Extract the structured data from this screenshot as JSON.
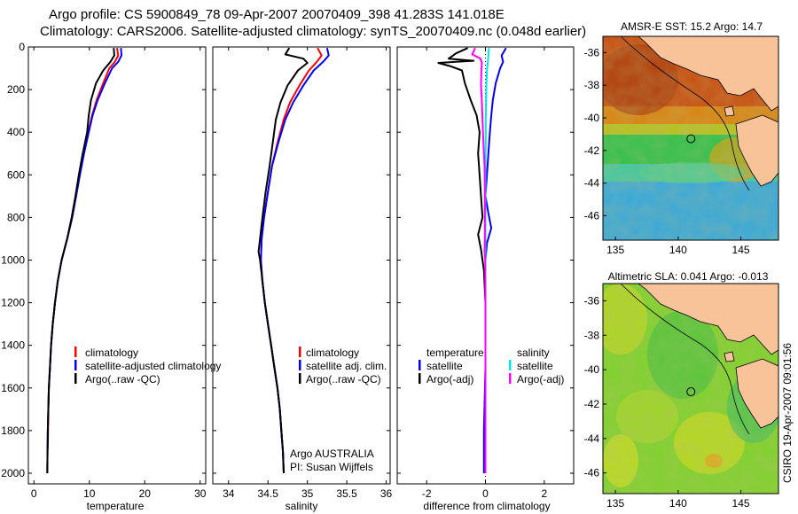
{
  "header": {
    "line1": "Argo profile: CS 5900849_78 09-Apr-2007 20070409_398 41.283S 141.018E",
    "line2": "Climatology: CARS2006. Satellite-adjusted climatology: synTS_20070409.nc (0.048d earlier)"
  },
  "colors": {
    "climatology": "#ff0000",
    "satellite": "#0000ff",
    "argo": "#000000",
    "satellite_diff": "#00e5ee",
    "argo_adj": "#ff00ff",
    "land": "#f9c39a"
  },
  "chart_data": [
    {
      "type": "line",
      "id": "temp",
      "xlabel": "temperature",
      "xlim": [
        -1,
        31
      ],
      "ylim": [
        0,
        2050
      ],
      "xticks": [
        0,
        10,
        20,
        30
      ],
      "xtick_labels": [
        "0",
        "10",
        "20",
        "30"
      ],
      "yticks": [
        0,
        200,
        400,
        600,
        800,
        1000,
        1200,
        1400,
        1600,
        1800,
        2000
      ],
      "ytick_labels": [
        "0",
        "200",
        "400",
        "600",
        "800",
        "1000",
        "1200",
        "1400",
        "1600",
        "1800",
        "2000"
      ],
      "legend": [
        "climatology",
        "satellite-adjusted climatology",
        "Argo(..raw -QC)"
      ],
      "series": [
        {
          "name": "climatology",
          "color": "#ff0000",
          "width": 2,
          "points": [
            [
              15.0,
              5
            ],
            [
              15.2,
              40
            ],
            [
              14.6,
              70
            ],
            [
              13.6,
              100
            ],
            [
              12.5,
              170
            ],
            [
              11.3,
              250
            ],
            [
              10.5,
              320
            ],
            [
              9.8,
              400
            ],
            [
              9.0,
              500
            ],
            [
              8.3,
              600
            ],
            [
              7.6,
              700
            ],
            [
              6.9,
              800
            ],
            [
              6.0,
              900
            ],
            [
              5.0,
              1000
            ],
            [
              4.3,
              1100
            ],
            [
              3.8,
              1200
            ],
            [
              3.4,
              1300
            ],
            [
              3.1,
              1400
            ],
            [
              2.9,
              1500
            ],
            [
              2.7,
              1600
            ],
            [
              2.6,
              1700
            ],
            [
              2.55,
              1800
            ],
            [
              2.5,
              1880
            ]
          ]
        },
        {
          "name": "satellite-adjusted climatology",
          "color": "#0000ff",
          "width": 2,
          "points": [
            [
              15.7,
              5
            ],
            [
              15.8,
              40
            ],
            [
              15.2,
              70
            ],
            [
              14.1,
              100
            ],
            [
              12.8,
              170
            ],
            [
              11.5,
              250
            ],
            [
              10.6,
              320
            ],
            [
              9.9,
              400
            ],
            [
              9.05,
              500
            ],
            [
              8.3,
              600
            ],
            [
              7.6,
              700
            ],
            [
              6.9,
              800
            ],
            [
              6.0,
              900
            ],
            [
              5.0,
              1000
            ],
            [
              4.3,
              1100
            ],
            [
              3.8,
              1200
            ],
            [
              3.4,
              1300
            ],
            [
              3.1,
              1400
            ],
            [
              2.9,
              1500
            ],
            [
              2.7,
              1600
            ],
            [
              2.6,
              1700
            ],
            [
              2.5,
              1800
            ],
            [
              2.45,
              1900
            ],
            [
              2.4,
              2000
            ]
          ]
        },
        {
          "name": "Argo(..raw -QC)",
          "color": "#000000",
          "width": 2,
          "points": [
            [
              14.4,
              5
            ],
            [
              14.5,
              40
            ],
            [
              13.8,
              70
            ],
            [
              12.5,
              110
            ],
            [
              11.2,
              170
            ],
            [
              10.3,
              250
            ],
            [
              9.9,
              320
            ],
            [
              9.6,
              400
            ],
            [
              8.8,
              500
            ],
            [
              8.1,
              600
            ],
            [
              7.5,
              700
            ],
            [
              6.8,
              800
            ],
            [
              6.0,
              900
            ],
            [
              5.0,
              1000
            ],
            [
              4.3,
              1100
            ],
            [
              3.8,
              1200
            ],
            [
              3.4,
              1300
            ],
            [
              3.1,
              1400
            ],
            [
              2.9,
              1500
            ],
            [
              2.7,
              1600
            ],
            [
              2.6,
              1700
            ],
            [
              2.5,
              1800
            ],
            [
              2.45,
              1900
            ],
            [
              2.4,
              2000
            ]
          ]
        }
      ]
    },
    {
      "type": "line",
      "id": "sal",
      "xlabel": "salinity",
      "xlim": [
        33.8,
        36.05
      ],
      "ylim": [
        0,
        2050
      ],
      "xticks": [
        34,
        34.5,
        35,
        35.5,
        36
      ],
      "xtick_labels": [
        "34",
        "34.5",
        "35",
        "35.5",
        "36"
      ],
      "legend": [
        "climatology",
        "satellite adj. clim.",
        "Argo(..raw -QC)"
      ],
      "series": [
        {
          "name": "climatology",
          "color": "#ff0000",
          "width": 2,
          "points": [
            [
              35.13,
              5
            ],
            [
              35.18,
              40
            ],
            [
              35.12,
              70
            ],
            [
              35.02,
              110
            ],
            [
              34.9,
              180
            ],
            [
              34.78,
              260
            ],
            [
              34.7,
              340
            ],
            [
              34.62,
              450
            ],
            [
              34.55,
              560
            ],
            [
              34.5,
              680
            ],
            [
              34.45,
              800
            ],
            [
              34.42,
              900
            ],
            [
              34.41,
              1000
            ],
            [
              34.43,
              1100
            ],
            [
              34.46,
              1200
            ],
            [
              34.5,
              1300
            ],
            [
              34.54,
              1400
            ],
            [
              34.58,
              1500
            ],
            [
              34.62,
              1600
            ],
            [
              34.65,
              1700
            ],
            [
              34.67,
              1800
            ],
            [
              34.69,
              1900
            ],
            [
              34.7,
              2000
            ]
          ]
        },
        {
          "name": "satellite adj. clim.",
          "color": "#0000ff",
          "width": 2,
          "points": [
            [
              35.25,
              5
            ],
            [
              35.27,
              40
            ],
            [
              35.2,
              70
            ],
            [
              35.08,
              110
            ],
            [
              34.95,
              180
            ],
            [
              34.82,
              260
            ],
            [
              34.72,
              340
            ],
            [
              34.63,
              450
            ],
            [
              34.55,
              560
            ],
            [
              34.5,
              680
            ],
            [
              34.45,
              800
            ],
            [
              34.42,
              900
            ],
            [
              34.41,
              1000
            ],
            [
              34.43,
              1100
            ],
            [
              34.46,
              1200
            ],
            [
              34.5,
              1300
            ],
            [
              34.54,
              1400
            ],
            [
              34.58,
              1500
            ],
            [
              34.62,
              1600
            ],
            [
              34.65,
              1700
            ],
            [
              34.67,
              1800
            ],
            [
              34.69,
              1900
            ],
            [
              34.7,
              2000
            ]
          ]
        },
        {
          "name": "Argo(..raw -QC)",
          "color": "#000000",
          "width": 2,
          "points": [
            [
              34.77,
              5
            ],
            [
              34.72,
              35
            ],
            [
              34.95,
              55
            ],
            [
              35.0,
              75
            ],
            [
              34.88,
              110
            ],
            [
              34.75,
              180
            ],
            [
              34.66,
              260
            ],
            [
              34.6,
              340
            ],
            [
              34.56,
              450
            ],
            [
              34.52,
              560
            ],
            [
              34.47,
              680
            ],
            [
              34.43,
              800
            ],
            [
              34.4,
              900
            ],
            [
              34.38,
              960
            ],
            [
              34.4,
              1000
            ],
            [
              34.43,
              1100
            ],
            [
              34.46,
              1200
            ],
            [
              34.5,
              1300
            ],
            [
              34.54,
              1400
            ],
            [
              34.58,
              1500
            ],
            [
              34.62,
              1600
            ],
            [
              34.65,
              1700
            ],
            [
              34.67,
              1800
            ],
            [
              34.69,
              1900
            ],
            [
              34.7,
              2000
            ]
          ]
        }
      ]
    },
    {
      "type": "line",
      "id": "diff",
      "xlabel": "difference from climatology",
      "xlim": [
        -3,
        3
      ],
      "ylim": [
        0,
        2050
      ],
      "xticks": [
        -2,
        0,
        2
      ],
      "xtick_labels": [
        "-2",
        "0",
        "2"
      ],
      "legend_titles": [
        "temperature",
        "salinity"
      ],
      "legend": [
        "satellite",
        "Argo(-adj)",
        "satellite",
        "Argo(-adj)"
      ],
      "series": [
        {
          "name": "temperature satellite",
          "color": "#0000ff",
          "width": 2,
          "points": [
            [
              0.7,
              5
            ],
            [
              0.55,
              40
            ],
            [
              0.6,
              70
            ],
            [
              0.5,
              100
            ],
            [
              0.35,
              170
            ],
            [
              0.25,
              250
            ],
            [
              0.2,
              320
            ],
            [
              0.15,
              400
            ],
            [
              0.1,
              500
            ],
            [
              0.05,
              600
            ],
            [
              0.0,
              700
            ],
            [
              0.1,
              780
            ],
            [
              0.2,
              850
            ],
            [
              0.05,
              920
            ],
            [
              0.0,
              1000
            ],
            [
              0.0,
              1200
            ],
            [
              0.0,
              1500
            ],
            [
              -0.05,
              1800
            ],
            [
              -0.05,
              2000
            ]
          ]
        },
        {
          "name": "temperature Argo(-adj)",
          "color": "#000000",
          "width": 2,
          "points": [
            [
              -0.6,
              5
            ],
            [
              -1.0,
              30
            ],
            [
              -1.25,
              55
            ],
            [
              -0.4,
              65
            ],
            [
              -1.6,
              75
            ],
            [
              -1.2,
              90
            ],
            [
              -0.8,
              110
            ],
            [
              -0.7,
              170
            ],
            [
              -0.5,
              250
            ],
            [
              -0.3,
              320
            ],
            [
              -0.2,
              400
            ],
            [
              -0.25,
              500
            ],
            [
              -0.2,
              600
            ],
            [
              -0.15,
              700
            ],
            [
              -0.1,
              800
            ],
            [
              -0.25,
              880
            ],
            [
              -0.15,
              950
            ],
            [
              -0.1,
              1000
            ],
            [
              -0.05,
              1050
            ],
            [
              0.0,
              1200
            ],
            [
              0.0,
              1500
            ],
            [
              0.0,
              1800
            ],
            [
              0.0,
              2000
            ]
          ]
        },
        {
          "name": "salinity satellite",
          "color": "#00e5ee",
          "width": 2,
          "points": [
            [
              0.12,
              5
            ],
            [
              0.1,
              40
            ],
            [
              0.08,
              70
            ],
            [
              0.05,
              110
            ],
            [
              0.03,
              180
            ],
            [
              0.02,
              260
            ],
            [
              0.01,
              340
            ],
            [
              0.01,
              450
            ],
            [
              0.0,
              560
            ],
            [
              0.0,
              700
            ],
            [
              0.0,
              900
            ],
            [
              0.0,
              1200
            ],
            [
              0.0,
              1500
            ],
            [
              0.0,
              1800
            ],
            [
              0.0,
              2000
            ]
          ]
        },
        {
          "name": "salinity Argo(-adj)",
          "color": "#ff00ff",
          "width": 2,
          "points": [
            [
              -0.35,
              5
            ],
            [
              -0.45,
              35
            ],
            [
              -0.17,
              55
            ],
            [
              -0.12,
              75
            ],
            [
              -0.14,
              110
            ],
            [
              -0.15,
              180
            ],
            [
              -0.12,
              260
            ],
            [
              -0.1,
              340
            ],
            [
              -0.07,
              450
            ],
            [
              -0.03,
              560
            ],
            [
              -0.02,
              680
            ],
            [
              -0.02,
              800
            ],
            [
              -0.02,
              900
            ],
            [
              -0.03,
              960
            ],
            [
              -0.01,
              1000
            ],
            [
              0.0,
              1200
            ],
            [
              0.0,
              1500
            ],
            [
              0.0,
              1800
            ],
            [
              0.0,
              2000
            ]
          ]
        }
      ]
    },
    {
      "type": "heatmap",
      "id": "sst",
      "title": "AMSR-E SST: 15.2 Argo: 14.7",
      "xlim": [
        134,
        148
      ],
      "ylim": [
        -47.5,
        -35
      ],
      "xticks": [
        135,
        140,
        145
      ],
      "xtick_labels": [
        "135",
        "140",
        "145"
      ],
      "yticks": [
        -36,
        -38,
        -40,
        -42,
        -44,
        -46
      ],
      "ytick_labels": [
        "-36",
        "-38",
        "-40",
        "-42",
        "-44",
        "-46"
      ],
      "marker": {
        "lon": 141.018,
        "lat": -41.283
      }
    },
    {
      "type": "heatmap",
      "id": "sla",
      "title": "Altimetric SLA: 0.041 Argo: -0.013",
      "xlim": [
        134,
        148
      ],
      "ylim": [
        -47.2,
        -35
      ],
      "xticks": [
        135,
        140,
        145
      ],
      "xtick_labels": [
        "135",
        "140",
        "145"
      ],
      "yticks": [
        -36,
        -38,
        -40,
        -42,
        -44,
        -46
      ],
      "ytick_labels": [
        "-36",
        "-38",
        "-40",
        "-42",
        "-44",
        "-46"
      ],
      "marker": {
        "lon": 141.018,
        "lat": -41.283
      }
    }
  ],
  "annotations": {
    "institution": "Argo AUSTRALIA",
    "pi": "PI: Susan Wijffels",
    "footer": "CSIRO 19-Apr-2007 09:01:56"
  }
}
